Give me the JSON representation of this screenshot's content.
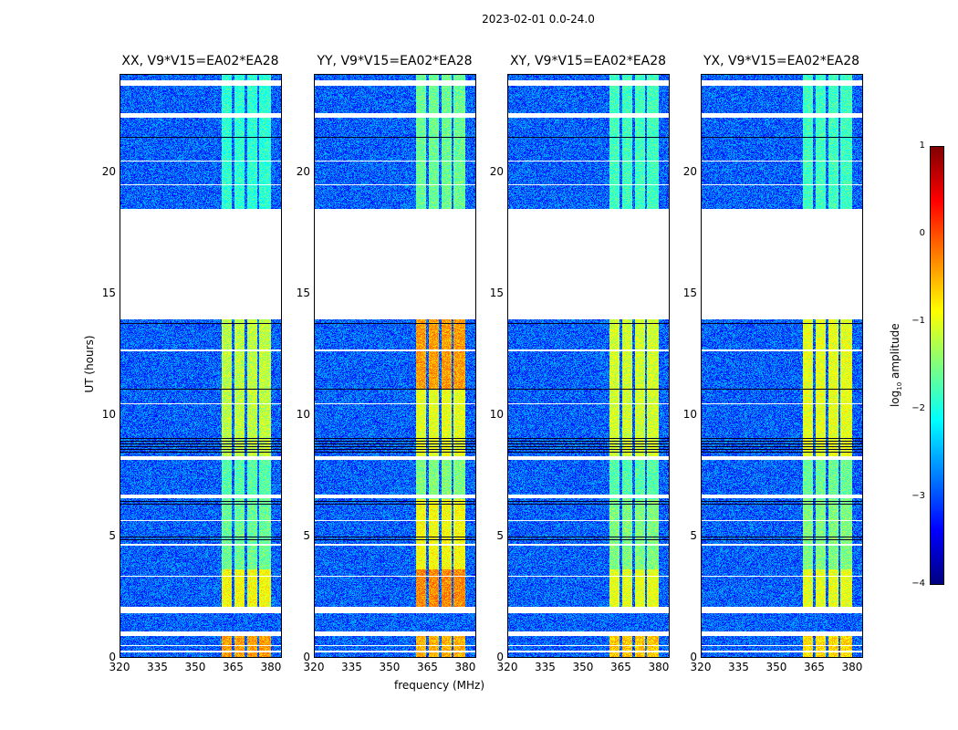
{
  "chart_data": {
    "type": "heatmap",
    "title": "2023-02-01 0.0-24.0",
    "xlabel": "frequency (MHz)",
    "ylabel": "UT (hours)",
    "xlim": [
      320,
      384
    ],
    "ylim": [
      0,
      24
    ],
    "xticks": [
      320,
      335,
      350,
      365,
      380
    ],
    "yticks": [
      0,
      5,
      10,
      15,
      20
    ],
    "colorbar": {
      "label": "log10 amplitude",
      "label_main": "log",
      "label_sub": "10",
      "label_rest": " amplitude",
      "range": [
        -4,
        1
      ],
      "ticks": [
        1,
        0,
        -1,
        -2,
        -3,
        -4
      ],
      "colormap": "jet"
    },
    "flagged_time_ranges": [
      [
        13.9,
        18.45
      ],
      [
        1.8,
        2.05
      ],
      [
        0.85,
        1.05
      ],
      [
        23.5,
        23.75
      ],
      [
        22.2,
        22.4
      ],
      [
        8.1,
        8.25
      ],
      [
        6.55,
        6.7
      ],
      [
        3.3,
        3.35
      ],
      [
        4.6,
        4.65
      ],
      [
        5.6,
        5.65
      ],
      [
        10.4,
        10.45
      ],
      [
        12.6,
        12.65
      ],
      [
        19.4,
        19.45
      ],
      [
        20.4,
        20.45
      ],
      [
        0.45,
        0.5
      ],
      [
        0.2,
        0.25
      ]
    ],
    "dark_time_ranges": [
      [
        8.4,
        9.1
      ],
      [
        6.2,
        6.5
      ],
      [
        4.8,
        5.0
      ],
      [
        13.7,
        13.8
      ],
      [
        21.3,
        21.5
      ],
      [
        11.0,
        11.05
      ],
      [
        9.9,
        9.95
      ]
    ],
    "background_level": -2.9,
    "band": {
      "start_mhz": 360.5,
      "end_mhz": 380,
      "gaps_mhz": [
        365,
        370,
        375
      ]
    },
    "panels": [
      {
        "title": "XX, V9*V15=EA02*EA28",
        "band_levels": [
          [
            0,
            0.85,
            -0.4
          ],
          [
            2.05,
            3.6,
            -0.9
          ],
          [
            3.6,
            6.5,
            -1.6
          ],
          [
            6.5,
            8.2,
            -1.7
          ],
          [
            8.2,
            13.9,
            -1.2
          ],
          [
            18.45,
            24,
            -1.9
          ]
        ]
      },
      {
        "title": "YY, V9*V15=EA02*EA28",
        "band_levels": [
          [
            0,
            0.85,
            -0.5
          ],
          [
            2.05,
            3.6,
            -0.3
          ],
          [
            3.6,
            6.5,
            -0.9
          ],
          [
            6.5,
            8.2,
            -1.5
          ],
          [
            8.2,
            11.0,
            -1.0
          ],
          [
            11.0,
            13.9,
            -0.4
          ],
          [
            18.45,
            24,
            -1.6
          ]
        ]
      },
      {
        "title": "XY, V9*V15=EA02*EA28",
        "band_levels": [
          [
            0,
            0.85,
            -0.6
          ],
          [
            2.05,
            3.6,
            -1.0
          ],
          [
            3.6,
            6.5,
            -1.5
          ],
          [
            6.5,
            8.2,
            -1.7
          ],
          [
            8.2,
            13.9,
            -1.1
          ],
          [
            18.45,
            24,
            -1.8
          ]
        ]
      },
      {
        "title": "YX, V9*V15=EA02*EA28",
        "band_levels": [
          [
            0,
            0.85,
            -0.7
          ],
          [
            2.05,
            3.6,
            -1.0
          ],
          [
            3.6,
            6.5,
            -1.5
          ],
          [
            6.5,
            8.2,
            -1.6
          ],
          [
            8.2,
            13.9,
            -1.0
          ],
          [
            18.45,
            24,
            -1.8
          ]
        ]
      }
    ]
  }
}
